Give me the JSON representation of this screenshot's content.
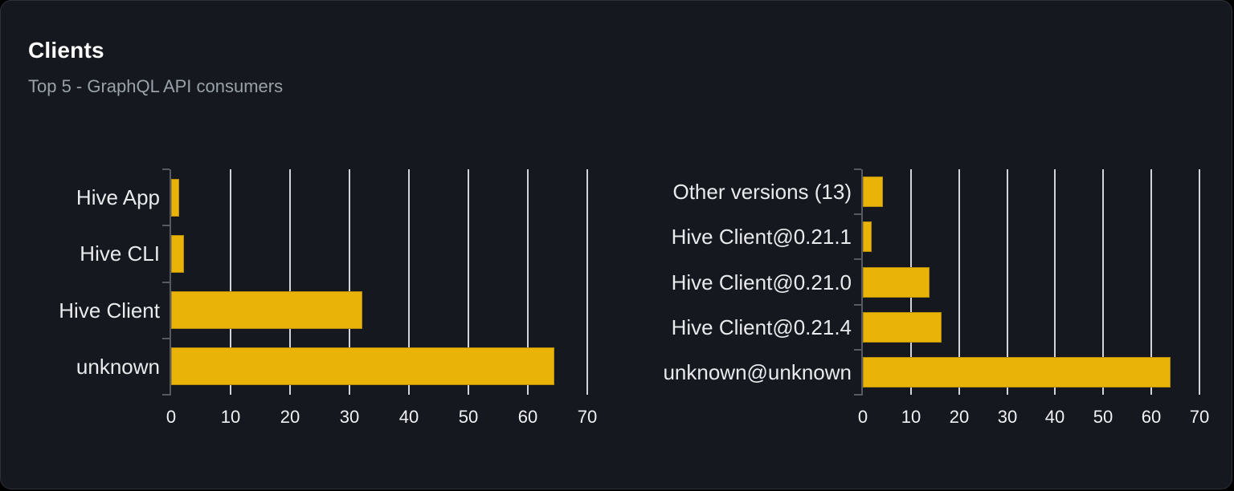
{
  "card": {
    "title": "Clients",
    "subtitle": "Top 5 - GraphQL API consumers"
  },
  "colors": {
    "page_background": "#000000",
    "card_background": "#15181e",
    "card_border": "#2d3036",
    "bar_fill": "#eab308",
    "gridline": "#e2e6eb",
    "axis": "#565b63",
    "category_label_text": "#e8eaec",
    "tick_label_text": "#f0f1f3",
    "title_text": "#fcfcfc",
    "subtitle_text": "#99a1a9"
  },
  "chart_data": [
    {
      "type": "bar",
      "orientation": "horizontal",
      "name": "top-clients",
      "categories": [
        "Hive App",
        "Hive CLI",
        "Hive Client",
        "unknown"
      ],
      "values": [
        1.4,
        2.1,
        32.2,
        64.4
      ],
      "xlim": [
        0,
        70
      ],
      "xticks": [
        0,
        10,
        20,
        30,
        40,
        50,
        60,
        70
      ],
      "grid": true,
      "legend": false,
      "title": "",
      "xlabel": "",
      "ylabel": ""
    },
    {
      "type": "bar",
      "orientation": "horizontal",
      "name": "top-client-versions",
      "categories": [
        "Other versions (13)",
        "Hive Client@0.21.1",
        "Hive Client@0.21.0",
        "Hive Client@0.21.4",
        "unknown@unknown"
      ],
      "values": [
        4.1,
        1.8,
        13.8,
        16.4,
        64.0
      ],
      "xlim": [
        0,
        70
      ],
      "xticks": [
        0,
        10,
        20,
        30,
        40,
        50,
        60,
        70
      ],
      "grid": true,
      "legend": false,
      "title": "",
      "xlabel": "",
      "ylabel": ""
    }
  ]
}
